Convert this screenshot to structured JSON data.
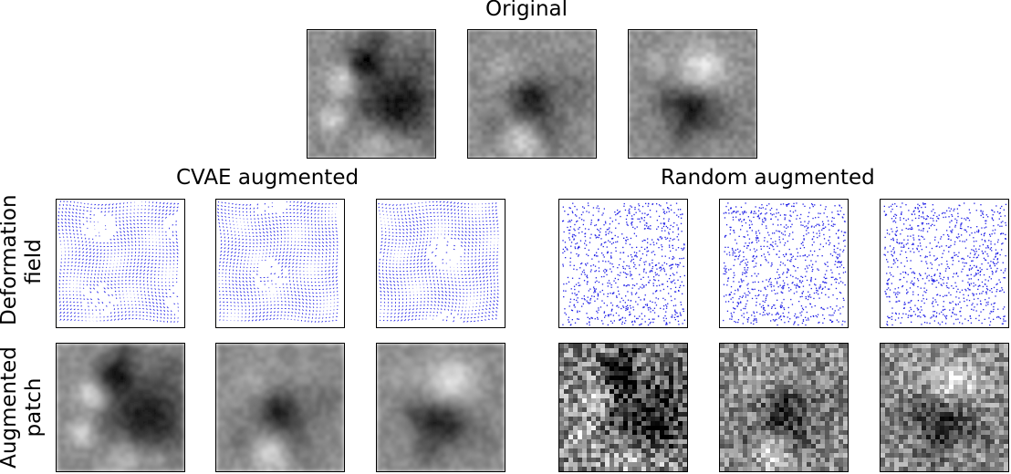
{
  "titles": {
    "original": "Original",
    "cvae": "CVAE augmented",
    "random": "Random augmented"
  },
  "row_labels": {
    "deformation": [
      "Deformation",
      "field"
    ],
    "augmented": [
      "Augmented",
      "patch"
    ]
  },
  "colors": {
    "vector_dots": "#1f1fe6",
    "panel_border": "#000000"
  }
}
